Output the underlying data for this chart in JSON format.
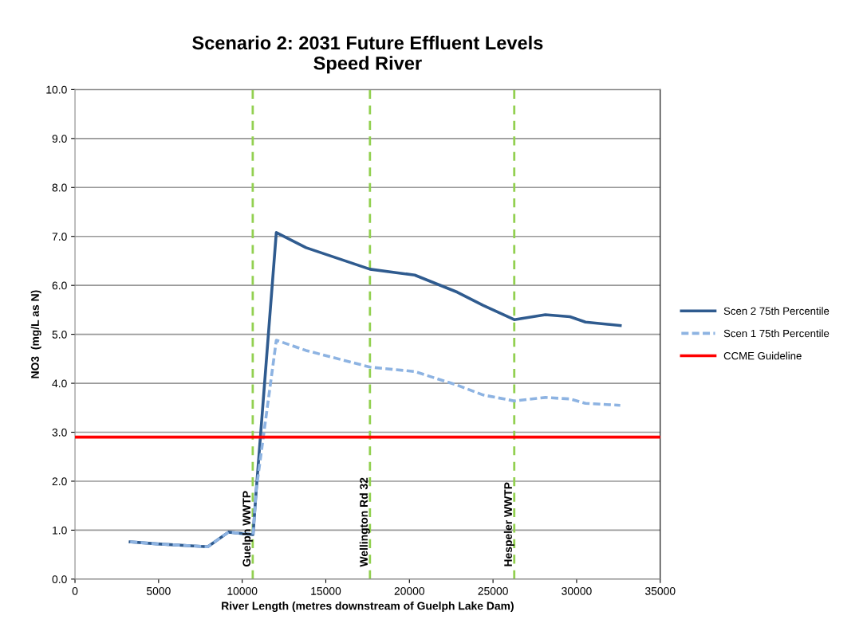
{
  "chart_data": {
    "type": "line",
    "title": "Scenario 2: 2031 Future Effluent Levels\nSpeed River",
    "xlabel": "River Length (metres downstream of Guelph Lake Dam)",
    "ylabel": "NO3  (mg/L as N)",
    "series": [
      {
        "name": "Scen 2 75th Percentile",
        "color": "#2f5b8f",
        "line_style": "solid",
        "x": [
          3300,
          4900,
          7940,
          9180,
          10650,
          10830,
          12040,
          13820,
          17640,
          20320,
          22870,
          24420,
          26270,
          28130,
          29600,
          30530,
          32610
        ],
        "values": [
          0.76,
          0.72,
          0.66,
          0.96,
          0.91,
          1.77,
          7.08,
          6.77,
          6.33,
          6.21,
          5.86,
          5.59,
          5.3,
          5.4,
          5.36,
          5.25,
          5.18
        ]
      },
      {
        "name": "Scen 1 75th Percentile",
        "color": "#8db3e2",
        "line_style": "dashed",
        "x": [
          3300,
          4900,
          7940,
          9180,
          10650,
          10830,
          12040,
          13820,
          17640,
          20320,
          22870,
          24420,
          26270,
          28130,
          29600,
          30530,
          32610
        ],
        "values": [
          0.76,
          0.72,
          0.66,
          0.96,
          0.91,
          1.8,
          4.88,
          4.67,
          4.33,
          4.24,
          3.96,
          3.76,
          3.64,
          3.71,
          3.68,
          3.59,
          3.55
        ]
      },
      {
        "name": "CCME Guideline",
        "color": "#ff0000",
        "line_style": "solid",
        "x": [
          0,
          35000
        ],
        "values": [
          2.9,
          2.9
        ]
      }
    ],
    "ref_lines": [
      {
        "axis": "x",
        "value": 10630,
        "label": "Guelph WWTP",
        "color": "#92d050",
        "line_style": "dashed"
      },
      {
        "axis": "x",
        "value": 17640,
        "label": "Wellington Rd 32",
        "color": "#92d050",
        "line_style": "dashed"
      },
      {
        "axis": "x",
        "value": 26270,
        "label": "Hespeler WWTP",
        "color": "#92d050",
        "line_style": "dashed"
      }
    ],
    "xlim": [
      0,
      35000
    ],
    "xticks": [
      0,
      5000,
      10000,
      15000,
      20000,
      25000,
      30000,
      35000
    ],
    "ylim": [
      0,
      10
    ],
    "yticks": [
      {
        "value": 0,
        "label": "0.0"
      },
      {
        "value": 1,
        "label": "1.0"
      },
      {
        "value": 2,
        "label": "2.0"
      },
      {
        "value": 3,
        "label": "3.0"
      },
      {
        "value": 4,
        "label": "4.0"
      },
      {
        "value": 5,
        "label": "5.0"
      },
      {
        "value": 6,
        "label": "6.0"
      },
      {
        "value": 7,
        "label": "7.0"
      },
      {
        "value": 8,
        "label": "8.0"
      },
      {
        "value": 9,
        "label": "9.0"
      },
      {
        "value": 10,
        "label": "10.0"
      }
    ],
    "grid": "y",
    "legend": "right",
    "marker": "none"
  }
}
